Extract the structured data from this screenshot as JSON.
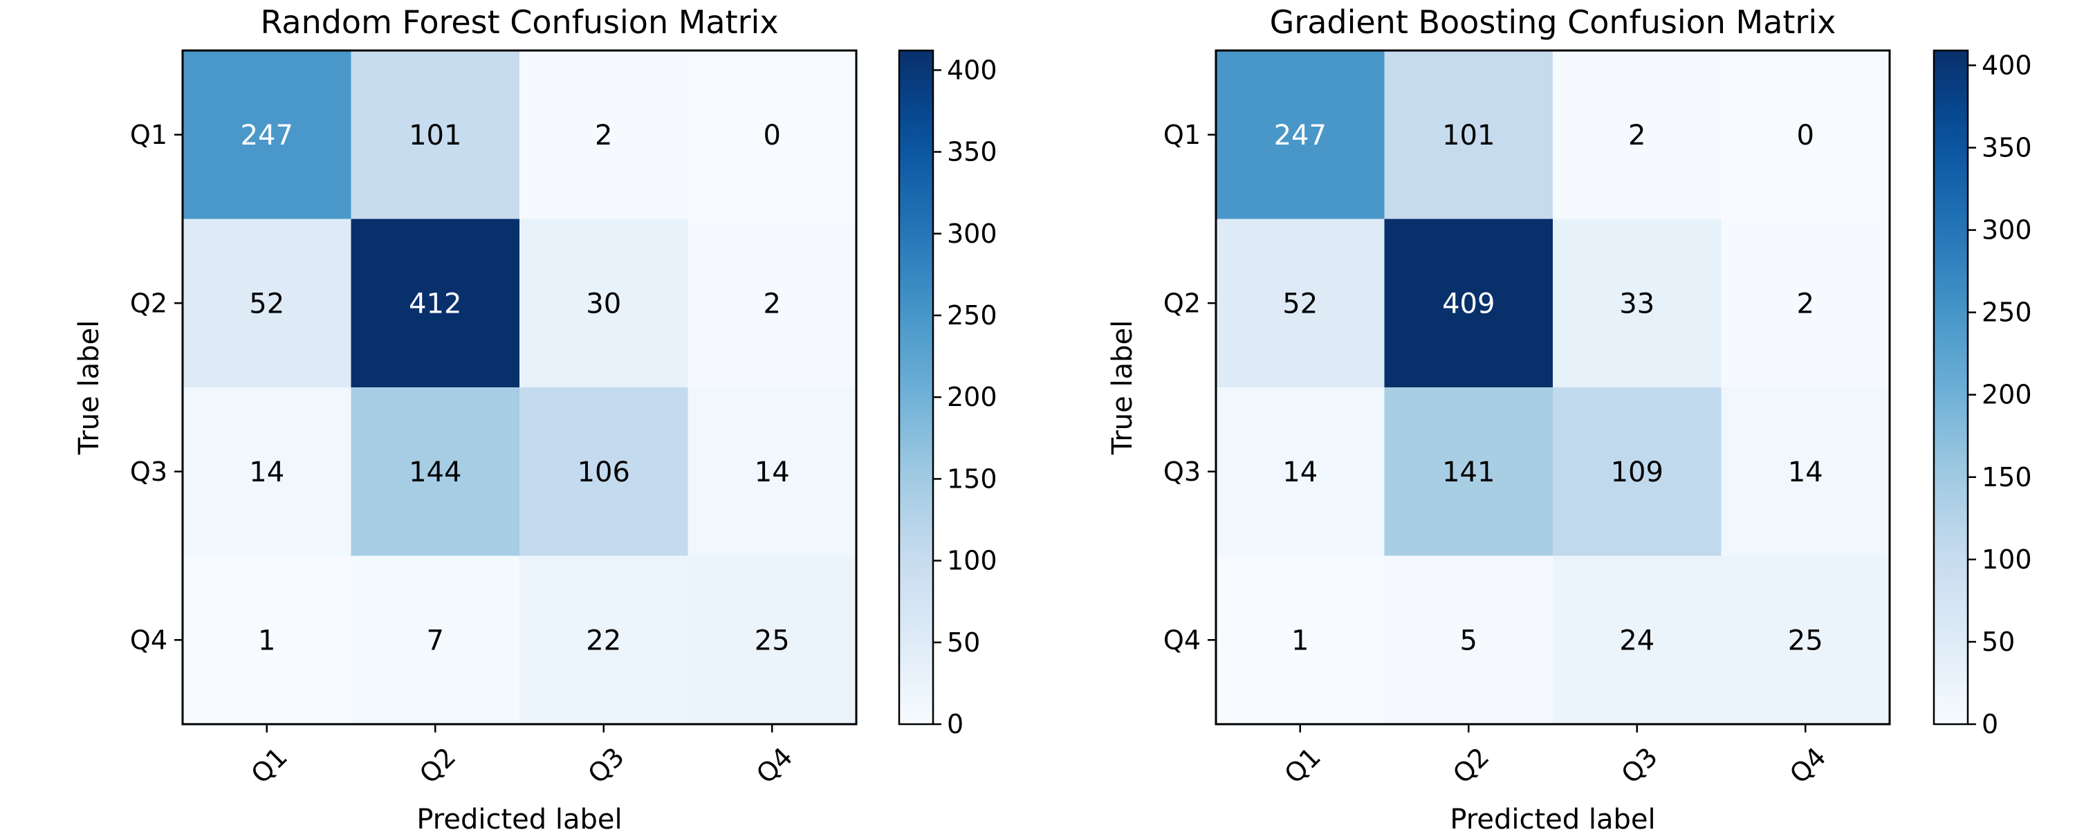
{
  "chart_data": [
    {
      "type": "heatmap",
      "title": "Random Forest Confusion Matrix",
      "xlabel": "Predicted label",
      "ylabel": "True label",
      "x_categories": [
        "Q1",
        "Q2",
        "Q3",
        "Q4"
      ],
      "y_categories": [
        "Q1",
        "Q2",
        "Q3",
        "Q4"
      ],
      "values": [
        [
          247,
          101,
          2,
          0
        ],
        [
          52,
          412,
          30,
          2
        ],
        [
          14,
          144,
          106,
          14
        ],
        [
          1,
          7,
          22,
          25
        ]
      ],
      "colormap": "Blues",
      "color_range": [
        0,
        412
      ],
      "colorbar_ticks": [
        0,
        50,
        100,
        150,
        200,
        250,
        300,
        350,
        400
      ],
      "xtick_rotation_deg": 45
    },
    {
      "type": "heatmap",
      "title": "Gradient Boosting Confusion Matrix",
      "xlabel": "Predicted label",
      "ylabel": "True label",
      "x_categories": [
        "Q1",
        "Q2",
        "Q3",
        "Q4"
      ],
      "y_categories": [
        "Q1",
        "Q2",
        "Q3",
        "Q4"
      ],
      "values": [
        [
          247,
          101,
          2,
          0
        ],
        [
          52,
          409,
          33,
          2
        ],
        [
          14,
          141,
          109,
          14
        ],
        [
          1,
          5,
          24,
          25
        ]
      ],
      "colormap": "Blues",
      "color_range": [
        0,
        409
      ],
      "colorbar_ticks": [
        0,
        50,
        100,
        150,
        200,
        250,
        300,
        350,
        400
      ],
      "xtick_rotation_deg": 45
    }
  ],
  "colors": {
    "text_dark": "#000000",
    "text_light": "#ffffff",
    "frame": "#000000",
    "background": "#ffffff"
  }
}
